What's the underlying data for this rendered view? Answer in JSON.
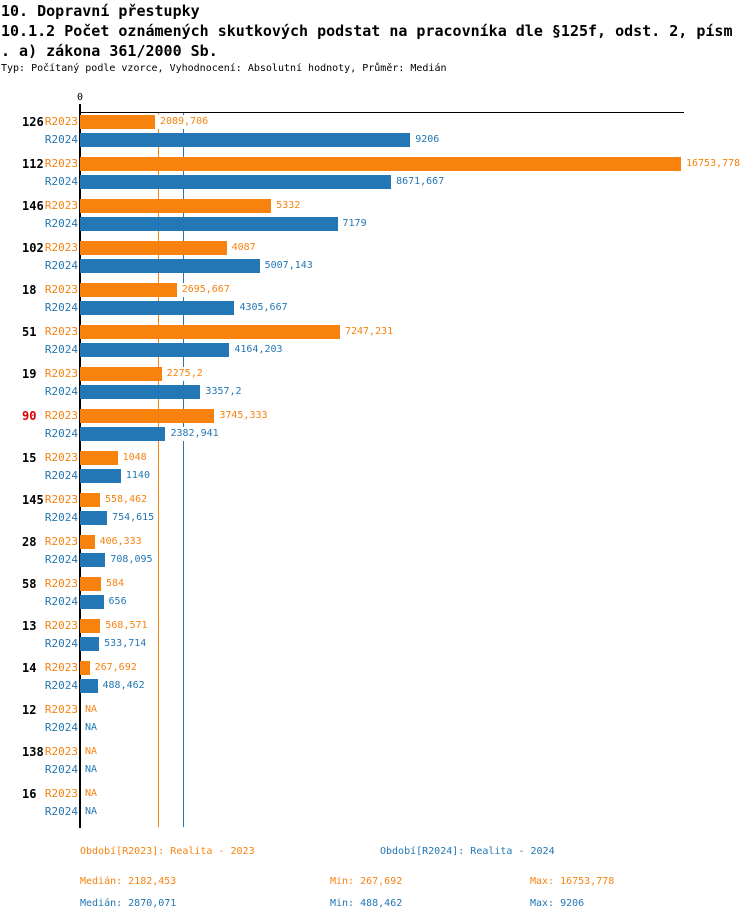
{
  "header": {
    "title_line1": "10. Dopravní přestupky",
    "title_line2": "10.1.2 Počet oznámených skutkových podstat na pracovníka dle §125f, odst. 2, písm",
    "title_line3": ". a) zákona 361/2000 Sb.",
    "subtitle": "Typ: Počítaný podle vzorce, Vyhodnocení: Absolutní hodnoty, Průměr: Medián"
  },
  "colors": {
    "r2023": "#F8820E",
    "r2024": "#2377B4",
    "highlight": "#DD0000",
    "axis": "#000000"
  },
  "chart_data": {
    "type": "bar",
    "orientation": "horizontal",
    "x_axis": {
      "zero_label": "0",
      "min": 0,
      "max_shown_value": 16753.778,
      "grid": false
    },
    "series_labels": {
      "r2023": "R2023",
      "r2024": "R2024"
    },
    "medians": {
      "r2023": 2182.453,
      "r2024": 2870.071
    },
    "na_text": "NA",
    "groups": [
      {
        "label": "126",
        "red": false,
        "r2023": {
          "value": 2089.706,
          "text": "2089,706"
        },
        "r2024": {
          "value": 9206,
          "text": "9206"
        }
      },
      {
        "label": "112",
        "red": false,
        "r2023": {
          "value": 16753.778,
          "text": "16753,778"
        },
        "r2024": {
          "value": 8671.667,
          "text": "8671,667"
        }
      },
      {
        "label": "146",
        "red": false,
        "r2023": {
          "value": 5332,
          "text": "5332"
        },
        "r2024": {
          "value": 7179,
          "text": "7179"
        }
      },
      {
        "label": "102",
        "red": false,
        "r2023": {
          "value": 4087,
          "text": "4087"
        },
        "r2024": {
          "value": 5007.143,
          "text": "5007,143"
        }
      },
      {
        "label": "18",
        "red": false,
        "r2023": {
          "value": 2695.667,
          "text": "2695,667"
        },
        "r2024": {
          "value": 4305.667,
          "text": "4305,667"
        }
      },
      {
        "label": "51",
        "red": false,
        "r2023": {
          "value": 7247.231,
          "text": "7247,231"
        },
        "r2024": {
          "value": 4164.203,
          "text": "4164,203"
        }
      },
      {
        "label": "19",
        "red": false,
        "r2023": {
          "value": 2275.2,
          "text": "2275,2"
        },
        "r2024": {
          "value": 3357.2,
          "text": "3357,2"
        }
      },
      {
        "label": "90",
        "red": true,
        "r2023": {
          "value": 3745.333,
          "text": "3745,333"
        },
        "r2024": {
          "value": 2382.941,
          "text": "2382,941"
        }
      },
      {
        "label": "15",
        "red": false,
        "r2023": {
          "value": 1048,
          "text": "1048"
        },
        "r2024": {
          "value": 1140,
          "text": "1140"
        }
      },
      {
        "label": "145",
        "red": false,
        "r2023": {
          "value": 558.462,
          "text": "558,462"
        },
        "r2024": {
          "value": 754.615,
          "text": "754,615"
        }
      },
      {
        "label": "28",
        "red": false,
        "r2023": {
          "value": 406.333,
          "text": "406,333"
        },
        "r2024": {
          "value": 708.095,
          "text": "708,095"
        }
      },
      {
        "label": "58",
        "red": false,
        "r2023": {
          "value": 584,
          "text": "584"
        },
        "r2024": {
          "value": 656,
          "text": "656"
        }
      },
      {
        "label": "13",
        "red": false,
        "r2023": {
          "value": 568.571,
          "text": "568,571"
        },
        "r2024": {
          "value": 533.714,
          "text": "533,714"
        }
      },
      {
        "label": "14",
        "red": false,
        "r2023": {
          "value": 267.692,
          "text": "267,692"
        },
        "r2024": {
          "value": 488.462,
          "text": "488,462"
        }
      },
      {
        "label": "12",
        "red": false,
        "r2023": {
          "value": null,
          "text": "NA"
        },
        "r2024": {
          "value": null,
          "text": "NA"
        }
      },
      {
        "label": "138",
        "red": false,
        "r2023": {
          "value": null,
          "text": "NA"
        },
        "r2024": {
          "value": null,
          "text": "NA"
        }
      },
      {
        "label": "16",
        "red": false,
        "r2023": {
          "value": null,
          "text": "NA"
        },
        "r2024": {
          "value": null,
          "text": "NA"
        }
      }
    ]
  },
  "footer": {
    "period_r2023": "Období[R2023]: Realita - 2023",
    "period_r2024": "Období[R2024]: Realita - 2024",
    "median_r2023": "Medián: 2182,453",
    "min_r2023": "Min: 267,692",
    "max_r2023": "Max: 16753,778",
    "median_r2024": "Medián: 2870,071",
    "min_r2024": "Min: 488,462",
    "max_r2024": "Max: 9206"
  }
}
